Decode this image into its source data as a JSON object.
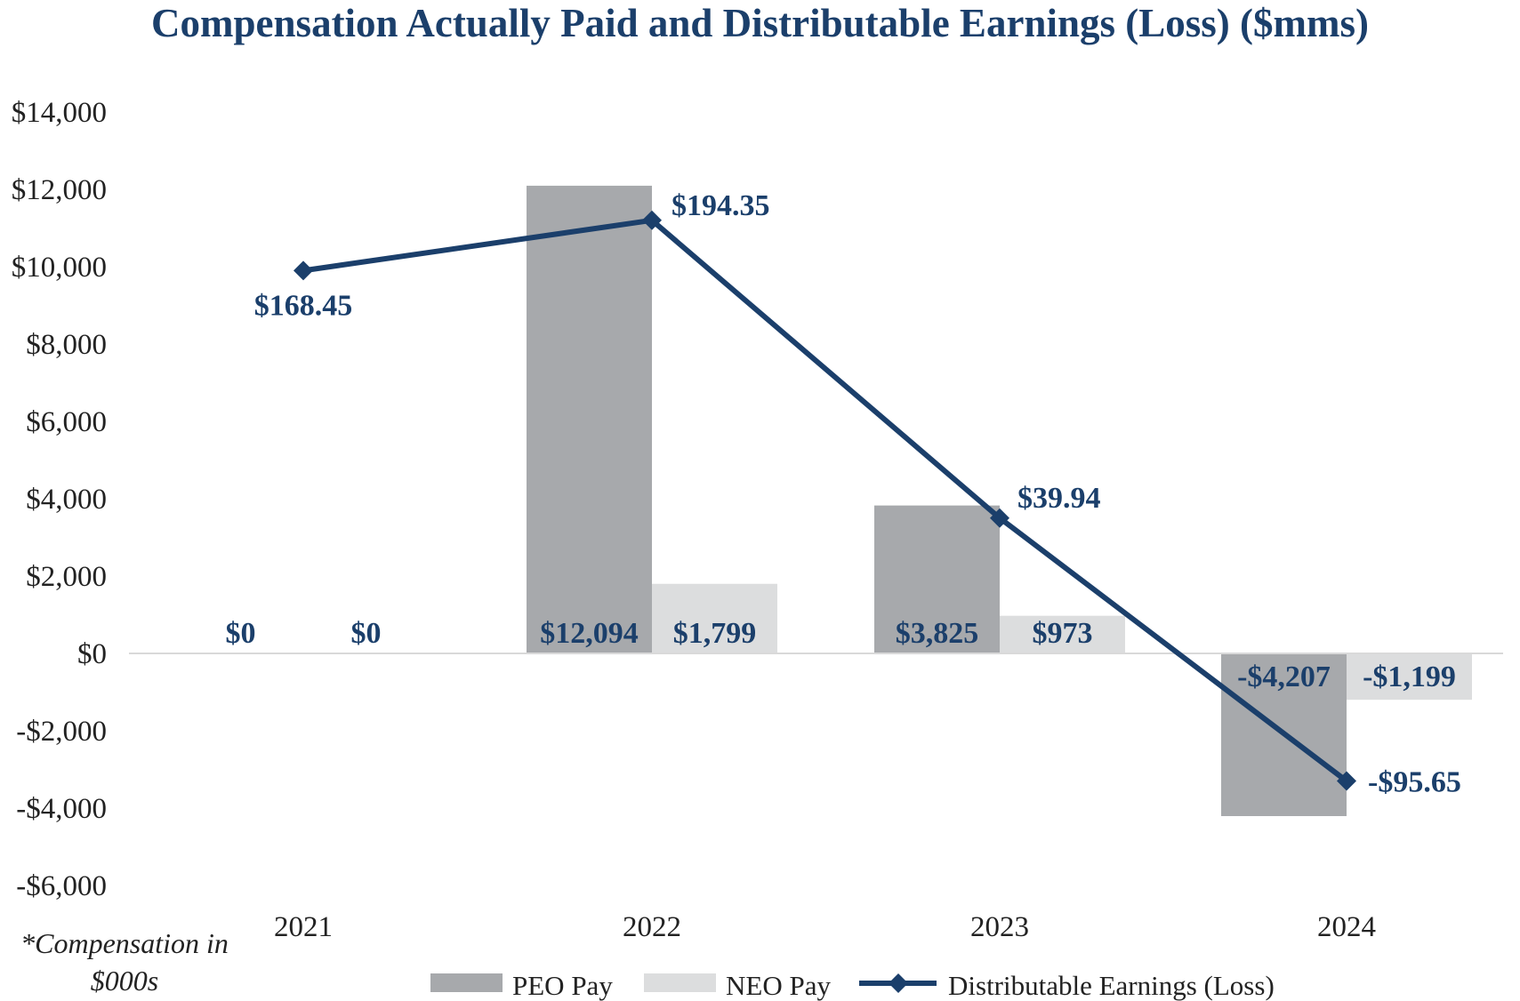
{
  "chart_data": {
    "type": "bar",
    "title": "Compensation Actually Paid and Distributable Earnings (Loss) ($mms)",
    "categories": [
      "2021",
      "2022",
      "2023",
      "2024"
    ],
    "ylim": [
      -6000,
      14000
    ],
    "yticks": [
      14000,
      12000,
      10000,
      8000,
      6000,
      4000,
      2000,
      0,
      -2000,
      -4000,
      -6000
    ],
    "ytick_labels": [
      "$14,000",
      "$12,000",
      "$10,000",
      "$8,000",
      "$6,000",
      "$4,000",
      "$2,000",
      "$0",
      "-$2,000",
      "-$4,000",
      "-$6,000"
    ],
    "grid": false,
    "series": [
      {
        "name": "PEO Pay",
        "kind": "bar",
        "color": "#a7a9ac",
        "values": [
          0,
          12094,
          3825,
          -4207
        ],
        "labels": [
          "$0",
          "$12,094",
          "$3,825",
          "-$4,207"
        ]
      },
      {
        "name": "NEO Pay",
        "kind": "bar",
        "color": "#dcddde",
        "values": [
          0,
          1799,
          973,
          -1199
        ],
        "labels": [
          "$0",
          "$1,799",
          "$973",
          "-$1,199"
        ]
      },
      {
        "name": "Distributable Earnings (Loss)",
        "kind": "line",
        "color": "#1b3f6b",
        "plot_values": [
          9900,
          11200,
          3500,
          -3300
        ],
        "labels": [
          "$168.45",
          "$194.35",
          "$39.94",
          "-$95.65"
        ]
      }
    ],
    "legend": [
      "PEO Pay",
      "NEO Pay",
      "Distributable Earnings (Loss)"
    ],
    "legend_position": "bottom-center",
    "footnote": [
      "*Compensation in",
      "$000s"
    ]
  }
}
